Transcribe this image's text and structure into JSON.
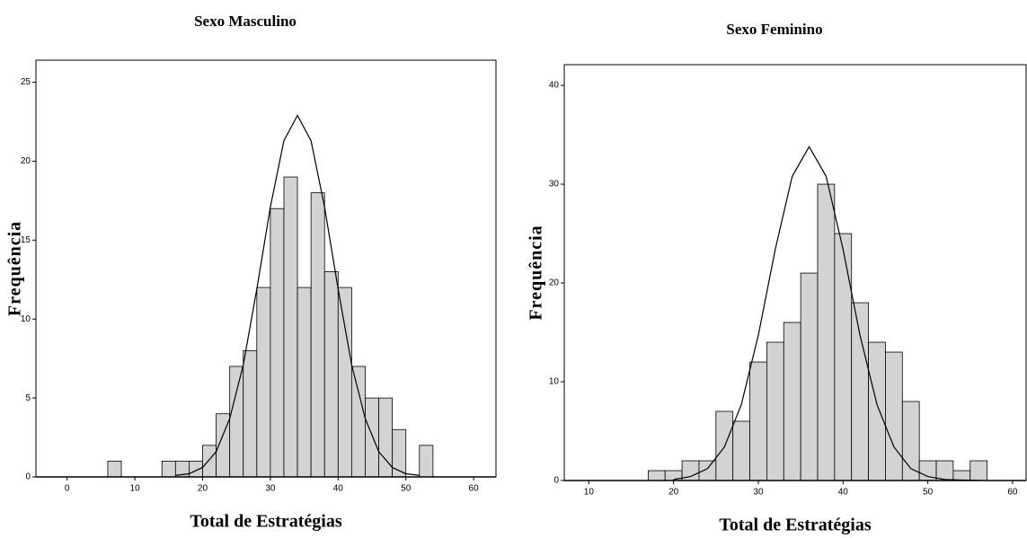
{
  "chart_data": [
    {
      "type": "histogram",
      "title": "Sexo Masculino",
      "xlabel": "Total de Estratégias",
      "ylabel": "Frequência",
      "bins": [
        6,
        8,
        10,
        12,
        14,
        16,
        18,
        20,
        22,
        24,
        26,
        28,
        30,
        32,
        34,
        36,
        38,
        40,
        42,
        44,
        46,
        48,
        50,
        52,
        54
      ],
      "counts": [
        1,
        0,
        0,
        0,
        1,
        1,
        1,
        2,
        4,
        7,
        8,
        12,
        17,
        19,
        12,
        18,
        13,
        12,
        7,
        5,
        5,
        3,
        0,
        2
      ],
      "color": "#d3d3d3",
      "curve": {
        "x": [
          16,
          18,
          20,
          22,
          24,
          26,
          28,
          30,
          32,
          34,
          36,
          38,
          40,
          42,
          44,
          46,
          48,
          50,
          52
        ],
        "values": [
          0.1,
          0.2,
          0.6,
          1.6,
          3.7,
          7.1,
          11.9,
          17.1,
          21.3,
          22.9,
          21.3,
          17.1,
          11.9,
          7.1,
          3.7,
          1.6,
          0.6,
          0.2,
          0.1
        ]
      },
      "xlim": [
        -4.6,
        63.3
      ],
      "ylim": [
        0,
        26.4
      ],
      "xticks": [
        0,
        10,
        20,
        30,
        40,
        50,
        60
      ],
      "yticks": [
        0,
        5,
        10,
        15,
        20,
        25
      ]
    },
    {
      "type": "histogram",
      "title": "Sexo Feminino",
      "xlabel": "Total de Estratégias",
      "ylabel": "Frequência",
      "bins": [
        17,
        19,
        21,
        23,
        25,
        27,
        29,
        31,
        33,
        35,
        37,
        39,
        41,
        43,
        45,
        47,
        49,
        51,
        53,
        55,
        57
      ],
      "counts": [
        1,
        1,
        2,
        2,
        7,
        6,
        12,
        14,
        16,
        21,
        30,
        25,
        18,
        14,
        13,
        8,
        2,
        2,
        1,
        2
      ],
      "color": "#d3d3d3",
      "curve": {
        "x": [
          20,
          22,
          24,
          26,
          28,
          30,
          32,
          34,
          36,
          38,
          40,
          42,
          44,
          46,
          48,
          50,
          52,
          54,
          56
        ],
        "values": [
          0.1,
          0.4,
          1.2,
          3.4,
          7.7,
          14.7,
          23.4,
          30.8,
          33.8,
          30.8,
          23.4,
          14.7,
          7.7,
          3.4,
          1.2,
          0.4,
          0.1,
          0.05,
          0.02
        ]
      },
      "xlim": [
        7.1,
        61.6
      ],
      "ylim": [
        0,
        42.1
      ],
      "xticks": [
        10,
        20,
        30,
        40,
        50,
        60
      ],
      "yticks": [
        0,
        10,
        20,
        30,
        40
      ]
    }
  ]
}
